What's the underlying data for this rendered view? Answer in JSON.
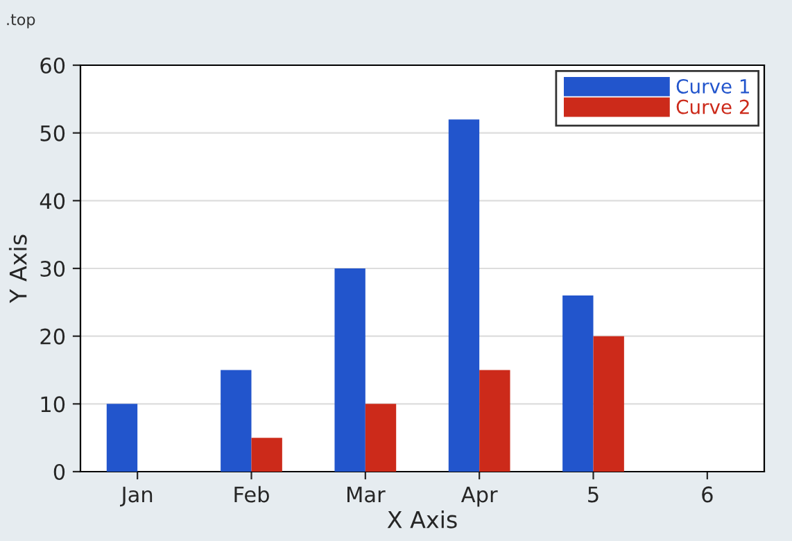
{
  "chart_data": {
    "type": "bar",
    "xlabel": "X Axis",
    "ylabel": "Y Axis",
    "annotations": [
      ".top"
    ],
    "categories": [
      "Jan",
      "Feb",
      "Mar",
      "Apr",
      "5",
      "6"
    ],
    "series": [
      {
        "name": "Curve 1",
        "color": "#2255cc",
        "values": [
          10,
          15,
          30,
          52,
          26,
          null
        ]
      },
      {
        "name": "Curve 2",
        "color": "#cc2a1a",
        "values": [
          null,
          5,
          10,
          15,
          20,
          null
        ]
      }
    ],
    "ylim": [
      0,
      60
    ],
    "yticks": [
      0,
      10,
      20,
      30,
      40,
      50,
      60
    ],
    "grid": "y",
    "legend": "top right"
  }
}
